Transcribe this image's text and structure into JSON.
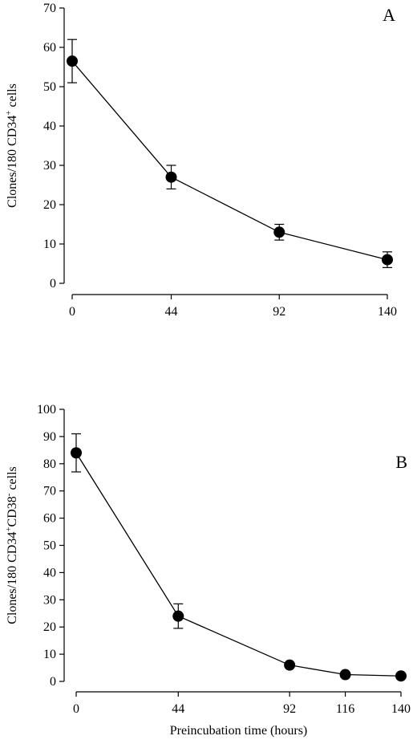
{
  "chart_data": [
    {
      "type": "line",
      "panel_label": "A",
      "ylabel": "Clones/180 CD34",
      "ylabel_sup": "+",
      "ylabel_tail": " cells",
      "xlabel": "",
      "x": [
        0,
        44,
        92,
        140
      ],
      "xticks": [
        "0",
        "44",
        "92",
        "140"
      ],
      "ylim": [
        0,
        70
      ],
      "yticks": [
        0,
        10,
        20,
        30,
        40,
        50,
        60,
        70
      ],
      "series": [
        {
          "values": [
            56.5,
            27,
            13,
            6
          ],
          "errors": [
            5.5,
            3,
            2,
            2
          ]
        }
      ],
      "grid": false
    },
    {
      "type": "line",
      "panel_label": "B",
      "ylabel": "Clones/180 CD34",
      "ylabel_sup": "+",
      "ylabel_mid": "CD38",
      "ylabel_sup2": "-",
      "ylabel_tail": " cells",
      "xlabel": "Preincubation time (hours)",
      "x": [
        0,
        44,
        92,
        116,
        140
      ],
      "xticks": [
        "0",
        "44",
        "92",
        "116",
        "140"
      ],
      "ylim": [
        0,
        100
      ],
      "yticks": [
        0,
        10,
        20,
        30,
        40,
        50,
        60,
        70,
        80,
        90,
        100
      ],
      "series": [
        {
          "values": [
            84,
            24,
            6,
            2.5,
            2
          ],
          "errors": [
            7,
            4.5,
            0,
            0,
            0
          ]
        }
      ],
      "grid": false
    }
  ]
}
